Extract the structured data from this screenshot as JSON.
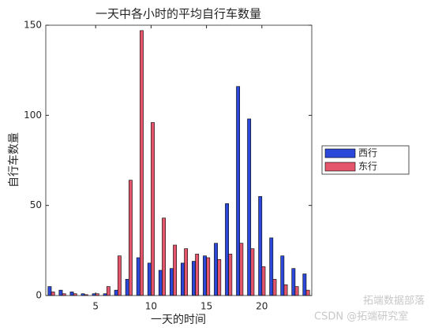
{
  "chart_data": {
    "type": "bar",
    "title": "一天中各小时的平均自行车数量",
    "xlabel": "一天的时间",
    "ylabel": "自行车数量",
    "x": [
      1,
      2,
      3,
      4,
      5,
      6,
      7,
      8,
      9,
      10,
      11,
      12,
      13,
      14,
      15,
      16,
      17,
      18,
      19,
      20,
      21,
      22,
      23,
      24
    ],
    "series": [
      {
        "name": "西行",
        "color": "#2b48d8",
        "values": [
          5,
          3,
          2,
          1,
          1,
          1,
          3,
          9,
          21,
          18,
          14,
          15,
          18,
          19,
          22,
          29,
          51,
          116,
          98,
          55,
          32,
          22,
          15,
          12
        ]
      },
      {
        "name": "东行",
        "color": "#e3566b",
        "values": [
          2,
          1,
          1,
          0.5,
          1,
          5,
          22,
          64,
          147,
          96,
          43,
          28,
          26,
          23,
          21,
          20,
          23,
          29,
          26,
          16,
          9,
          6,
          5,
          3
        ]
      }
    ],
    "xlim": [
      0.5,
      24.5
    ],
    "xticks": [
      5,
      10,
      15,
      20
    ],
    "ylim": [
      0,
      150
    ],
    "yticks": [
      0,
      50,
      100,
      150
    ],
    "legend": "right",
    "watermark": [
      "拓端数据部落",
      "CSDN @拓端研究室"
    ]
  }
}
